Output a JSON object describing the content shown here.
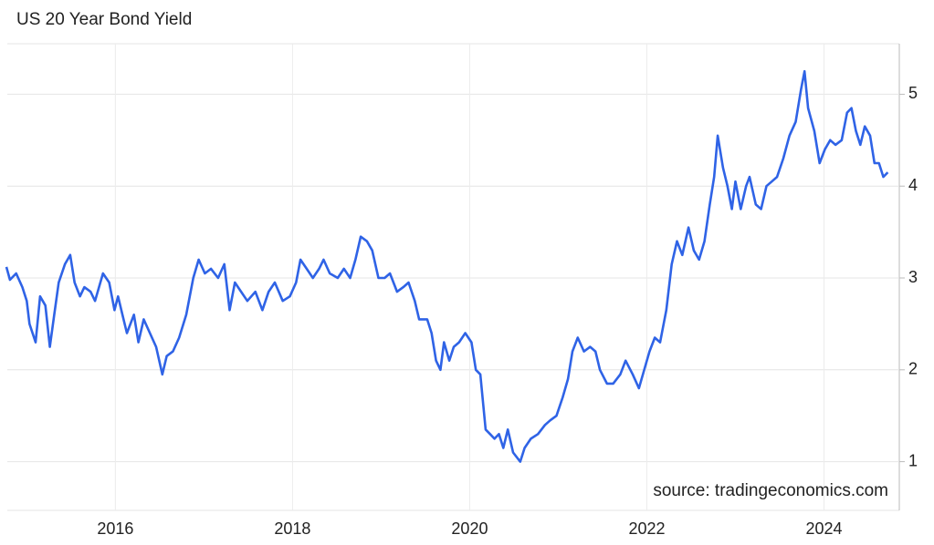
{
  "chart_data": {
    "type": "line",
    "title": "US 20 Year Bond Yield",
    "source": "source: tradingeconomics.com",
    "x": [
      2014.77,
      2014.81,
      2014.88,
      2014.95,
      2015.0,
      2015.03,
      2015.1,
      2015.15,
      2015.21,
      2015.26,
      2015.31,
      2015.36,
      2015.43,
      2015.49,
      2015.54,
      2015.6,
      2015.65,
      2015.72,
      2015.77,
      2015.86,
      2015.93,
      2015.99,
      2016.03,
      2016.08,
      2016.13,
      2016.21,
      2016.26,
      2016.32,
      2016.39,
      2016.46,
      2016.53,
      2016.58,
      2016.65,
      2016.72,
      2016.8,
      2016.88,
      2016.94,
      2017.01,
      2017.08,
      2017.16,
      2017.23,
      2017.29,
      2017.35,
      2017.42,
      2017.49,
      2017.58,
      2017.66,
      2017.73,
      2017.8,
      2017.89,
      2017.97,
      2018.04,
      2018.09,
      2018.16,
      2018.23,
      2018.3,
      2018.35,
      2018.42,
      2018.51,
      2018.58,
      2018.65,
      2018.71,
      2018.77,
      2018.84,
      2018.9,
      2018.97,
      2019.04,
      2019.1,
      2019.18,
      2019.25,
      2019.31,
      2019.38,
      2019.43,
      2019.52,
      2019.57,
      2019.62,
      2019.67,
      2019.71,
      2019.77,
      2019.82,
      2019.88,
      2019.95,
      2020.02,
      2020.07,
      2020.12,
      2020.18,
      2020.23,
      2020.28,
      2020.33,
      2020.38,
      2020.43,
      2020.49,
      2020.57,
      2020.62,
      2020.69,
      2020.77,
      2020.85,
      2020.91,
      2020.98,
      2021.05,
      2021.11,
      2021.16,
      2021.22,
      2021.29,
      2021.36,
      2021.42,
      2021.47,
      2021.55,
      2021.62,
      2021.7,
      2021.76,
      2021.84,
      2021.91,
      2021.97,
      2022.03,
      2022.09,
      2022.15,
      2022.22,
      2022.28,
      2022.34,
      2022.4,
      2022.47,
      2022.53,
      2022.59,
      2022.65,
      2022.71,
      2022.76,
      2022.8,
      2022.86,
      2022.91,
      2022.96,
      2023.0,
      2023.06,
      2023.12,
      2023.16,
      2023.23,
      2023.29,
      2023.35,
      2023.41,
      2023.47,
      2023.54,
      2023.61,
      2023.68,
      2023.74,
      2023.78,
      2023.82,
      2023.89,
      2023.95,
      2024.01,
      2024.07,
      2024.13,
      2024.2,
      2024.26,
      2024.31,
      2024.36,
      2024.41,
      2024.46,
      2024.52,
      2024.57,
      2024.62,
      2024.67,
      2024.72
    ],
    "series": [
      {
        "name": "US 20 Year Bond Yield",
        "color": "#2f63e6",
        "values": [
          3.12,
          2.98,
          3.05,
          2.9,
          2.75,
          2.5,
          2.3,
          2.8,
          2.7,
          2.25,
          2.6,
          2.95,
          3.15,
          3.25,
          2.95,
          2.8,
          2.9,
          2.85,
          2.75,
          3.05,
          2.95,
          2.65,
          2.8,
          2.6,
          2.4,
          2.6,
          2.3,
          2.55,
          2.4,
          2.25,
          1.95,
          2.15,
          2.2,
          2.35,
          2.6,
          3.0,
          3.2,
          3.05,
          3.1,
          3.0,
          3.15,
          2.65,
          2.95,
          2.85,
          2.75,
          2.85,
          2.65,
          2.85,
          2.95,
          2.75,
          2.8,
          2.95,
          3.2,
          3.1,
          3.0,
          3.1,
          3.2,
          3.05,
          3.0,
          3.1,
          3.0,
          3.2,
          3.45,
          3.4,
          3.3,
          3.0,
          3.0,
          3.05,
          2.85,
          2.9,
          2.95,
          2.75,
          2.55,
          2.55,
          2.4,
          2.1,
          2.0,
          2.3,
          2.1,
          2.25,
          2.3,
          2.4,
          2.3,
          2.0,
          1.95,
          1.35,
          1.3,
          1.25,
          1.3,
          1.15,
          1.35,
          1.1,
          1.0,
          1.15,
          1.25,
          1.3,
          1.4,
          1.45,
          1.5,
          1.7,
          1.9,
          2.2,
          2.35,
          2.2,
          2.25,
          2.2,
          2.0,
          1.85,
          1.85,
          1.95,
          2.1,
          1.95,
          1.8,
          2.0,
          2.2,
          2.35,
          2.3,
          2.65,
          3.15,
          3.4,
          3.25,
          3.55,
          3.3,
          3.2,
          3.4,
          3.8,
          4.1,
          4.55,
          4.2,
          4.0,
          3.75,
          4.05,
          3.75,
          4.0,
          4.1,
          3.8,
          3.75,
          4.0,
          4.05,
          4.1,
          4.3,
          4.55,
          4.7,
          5.05,
          5.25,
          4.85,
          4.6,
          4.25,
          4.4,
          4.5,
          4.45,
          4.5,
          4.8,
          4.85,
          4.6,
          4.45,
          4.65,
          4.55,
          4.25,
          4.25,
          4.1,
          4.15
        ]
      }
    ],
    "xlim": [
      2014.78,
      2024.85
    ],
    "xticks": [
      2016,
      2018,
      2020,
      2022,
      2024
    ],
    "ylim": [
      0.47,
      5.55
    ],
    "yticks": [
      1,
      2,
      3,
      4,
      5
    ],
    "grid": true
  }
}
